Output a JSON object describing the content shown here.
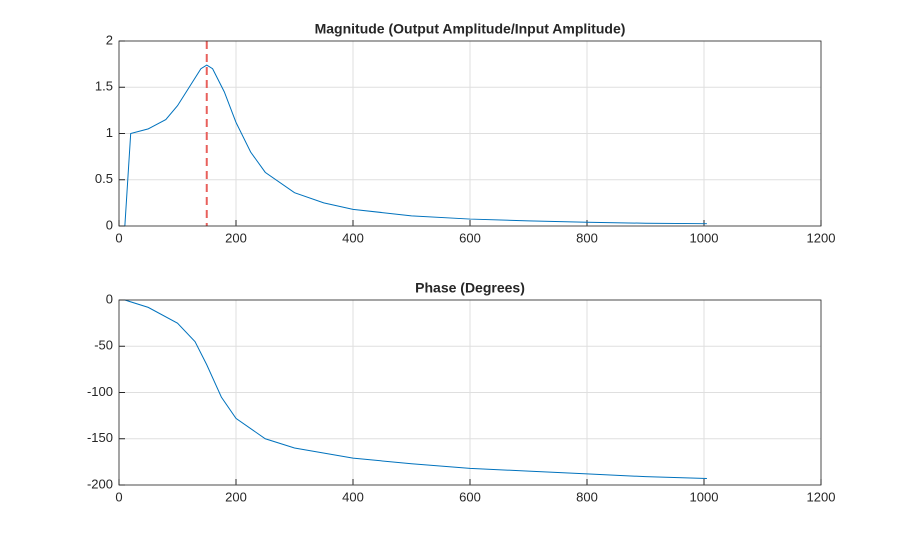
{
  "chart_data": [
    {
      "type": "line",
      "title": "Magnitude (Output Amplitude/Input Amplitude)",
      "x": [
        10,
        20,
        50,
        80,
        100,
        120,
        140,
        150,
        160,
        180,
        200,
        225,
        250,
        300,
        350,
        400,
        500,
        600,
        700,
        800,
        900,
        1005
      ],
      "values": [
        0,
        1.0,
        1.05,
        1.15,
        1.3,
        1.5,
        1.7,
        1.74,
        1.7,
        1.45,
        1.12,
        0.8,
        0.58,
        0.36,
        0.25,
        0.18,
        0.11,
        0.075,
        0.055,
        0.04,
        0.03,
        0.025
      ],
      "color": "#0072bd",
      "xlim": [
        0,
        1200
      ],
      "xticks": [
        0,
        200,
        400,
        600,
        800,
        1000,
        1200
      ],
      "ylim": [
        0,
        2
      ],
      "yticks": [
        0,
        0.5,
        1,
        1.5,
        2
      ],
      "grid": true,
      "reference_line": {
        "x": 150,
        "color": "#e8605c",
        "style": "dashed"
      }
    },
    {
      "type": "line",
      "title": "Phase (Degrees)",
      "x": [
        10,
        50,
        100,
        130,
        150,
        175,
        200,
        250,
        300,
        400,
        500,
        600,
        700,
        800,
        900,
        1005
      ],
      "values": [
        0,
        -8,
        -25,
        -45,
        -70,
        -105,
        -128,
        -150,
        -160,
        -171,
        -177,
        -182,
        -185,
        -188,
        -191,
        -193
      ],
      "color": "#0072bd",
      "xlim": [
        0,
        1200
      ],
      "xticks": [
        0,
        200,
        400,
        600,
        800,
        1000,
        1200
      ],
      "ylim": [
        -200,
        0
      ],
      "yticks": [
        -200,
        -150,
        -100,
        -50,
        0
      ],
      "grid": true
    }
  ]
}
